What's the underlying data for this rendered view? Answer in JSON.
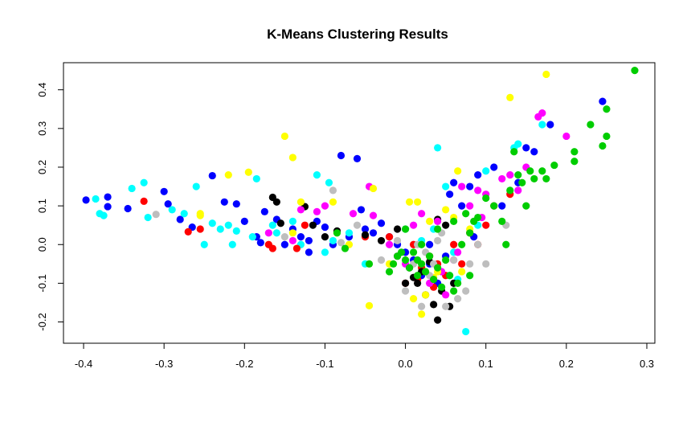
{
  "chart_data": {
    "type": "scatter",
    "title": "K-Means Clustering Results",
    "xlabel": "",
    "ylabel": "",
    "xlim": [
      -0.425,
      0.31
    ],
    "ylim": [
      -0.255,
      0.47
    ],
    "x_ticks": [
      -0.4,
      -0.3,
      -0.2,
      -0.1,
      0.0,
      0.1,
      0.2,
      0.3
    ],
    "x_tick_labels": [
      "-0.4",
      "-0.3",
      "-0.2",
      "-0.1",
      "0.0",
      "0.1",
      "0.2",
      "0.3"
    ],
    "y_ticks": [
      -0.2,
      -0.1,
      0.0,
      0.1,
      0.2,
      0.3,
      0.4
    ],
    "y_tick_labels": [
      "-0.2",
      "-0.1",
      "0.0",
      "0.1",
      "0.2",
      "0.3",
      "0.4"
    ],
    "grid": false,
    "legend": "none",
    "series": [
      {
        "color": "#0000FF",
        "points": [
          [
            -0.397,
            0.115
          ],
          [
            -0.37,
            0.123
          ],
          [
            -0.37,
            0.098
          ],
          [
            -0.345,
            0.093
          ],
          [
            -0.3,
            0.137
          ],
          [
            -0.295,
            0.105
          ],
          [
            -0.28,
            0.065
          ],
          [
            -0.265,
            0.045
          ],
          [
            -0.24,
            0.178
          ],
          [
            -0.225,
            0.11
          ],
          [
            -0.21,
            0.105
          ],
          [
            -0.2,
            0.06
          ],
          [
            -0.185,
            0.02
          ],
          [
            -0.18,
            0.005
          ],
          [
            -0.175,
            0.085
          ],
          [
            -0.16,
            0.065
          ],
          [
            -0.15,
            0.0
          ],
          [
            -0.14,
            0.04
          ],
          [
            -0.13,
            0.02
          ],
          [
            -0.12,
            0.01
          ],
          [
            -0.11,
            0.06
          ],
          [
            -0.1,
            0.045
          ],
          [
            -0.09,
            0.0
          ],
          [
            -0.08,
            0.23
          ],
          [
            -0.07,
            0.02
          ],
          [
            -0.06,
            0.222
          ],
          [
            -0.055,
            0.09
          ],
          [
            -0.05,
            0.04
          ],
          [
            -0.04,
            0.03
          ],
          [
            -0.03,
            0.055
          ],
          [
            -0.02,
            0.02
          ],
          [
            -0.01,
            0.0
          ],
          [
            0.0,
            -0.02
          ],
          [
            0.01,
            -0.04
          ],
          [
            0.02,
            -0.08
          ],
          [
            0.03,
            -0.05
          ],
          [
            0.04,
            -0.1
          ],
          [
            0.05,
            -0.03
          ],
          [
            0.055,
            0.13
          ],
          [
            0.06,
            0.16
          ],
          [
            0.08,
            0.15
          ],
          [
            0.09,
            0.18
          ],
          [
            0.11,
            0.2
          ],
          [
            0.12,
            0.1
          ],
          [
            0.14,
            0.16
          ],
          [
            0.15,
            0.25
          ],
          [
            0.16,
            0.24
          ],
          [
            0.18,
            0.31
          ],
          [
            0.245,
            0.37
          ],
          [
            0.07,
            0.1
          ],
          [
            0.085,
            0.02
          ],
          [
            0.03,
            0.0
          ],
          [
            -0.12,
            -0.02
          ]
        ]
      },
      {
        "color": "#00FFFF",
        "points": [
          [
            -0.385,
            0.118
          ],
          [
            -0.38,
            0.08
          ],
          [
            -0.375,
            0.075
          ],
          [
            -0.34,
            0.145
          ],
          [
            -0.325,
            0.16
          ],
          [
            -0.32,
            0.07
          ],
          [
            -0.29,
            0.09
          ],
          [
            -0.275,
            0.08
          ],
          [
            -0.26,
            0.15
          ],
          [
            -0.25,
            0.0
          ],
          [
            -0.24,
            0.055
          ],
          [
            -0.23,
            0.04
          ],
          [
            -0.22,
            0.05
          ],
          [
            -0.215,
            0.0
          ],
          [
            -0.21,
            0.035
          ],
          [
            -0.19,
            0.02
          ],
          [
            -0.185,
            0.17
          ],
          [
            -0.165,
            0.05
          ],
          [
            -0.16,
            0.03
          ],
          [
            -0.14,
            0.06
          ],
          [
            -0.11,
            0.18
          ],
          [
            -0.1,
            -0.02
          ],
          [
            -0.09,
            0.01
          ],
          [
            -0.07,
            0.03
          ],
          [
            -0.05,
            -0.05
          ],
          [
            0.0,
            0.04
          ],
          [
            0.02,
            0.01
          ],
          [
            0.035,
            0.04
          ],
          [
            0.04,
            0.25
          ],
          [
            0.05,
            0.15
          ],
          [
            0.06,
            -0.02
          ],
          [
            0.065,
            -0.09
          ],
          [
            0.075,
            -0.225
          ],
          [
            0.09,
            0.05
          ],
          [
            0.1,
            0.19
          ],
          [
            0.135,
            0.25
          ],
          [
            0.14,
            0.26
          ],
          [
            0.17,
            0.31
          ],
          [
            0.055,
            -0.08
          ],
          [
            -0.095,
            0.16
          ],
          [
            -0.13,
            0.0
          ]
        ]
      },
      {
        "color": "#FF0000",
        "points": [
          [
            -0.325,
            0.112
          ],
          [
            -0.27,
            0.033
          ],
          [
            -0.255,
            0.04
          ],
          [
            -0.17,
            0.0
          ],
          [
            -0.165,
            -0.01
          ],
          [
            -0.135,
            -0.01
          ],
          [
            -0.125,
            0.05
          ],
          [
            -0.05,
            0.02
          ],
          [
            -0.02,
            0.02
          ],
          [
            0.0,
            -0.1
          ],
          [
            0.01,
            0.0
          ],
          [
            0.02,
            -0.06
          ],
          [
            0.03,
            -0.03
          ],
          [
            0.04,
            -0.05
          ],
          [
            0.05,
            -0.08
          ],
          [
            0.06,
            0.0
          ],
          [
            0.07,
            -0.05
          ],
          [
            0.08,
            0.03
          ],
          [
            0.09,
            0.0
          ],
          [
            0.1,
            0.05
          ],
          [
            0.11,
            0.1
          ],
          [
            0.13,
            0.13
          ],
          [
            0.035,
            -0.11
          ],
          [
            0.015,
            -0.09
          ]
        ]
      },
      {
        "color": "#000000",
        "points": [
          [
            -0.165,
            0.122
          ],
          [
            -0.16,
            0.11
          ],
          [
            -0.155,
            0.055
          ],
          [
            -0.125,
            0.098
          ],
          [
            -0.115,
            0.05
          ],
          [
            -0.1,
            0.02
          ],
          [
            -0.085,
            0.035
          ],
          [
            -0.05,
            0.025
          ],
          [
            -0.03,
            0.01
          ],
          [
            -0.01,
            0.04
          ],
          [
            0.0,
            -0.1
          ],
          [
            0.01,
            -0.085
          ],
          [
            0.015,
            -0.1
          ],
          [
            0.025,
            -0.13
          ],
          [
            0.035,
            -0.155
          ],
          [
            0.04,
            -0.195
          ],
          [
            0.045,
            -0.12
          ],
          [
            0.05,
            0.05
          ],
          [
            0.055,
            -0.16
          ],
          [
            0.06,
            -0.1
          ],
          [
            0.04,
            0.065
          ],
          [
            0.02,
            -0.07
          ],
          [
            0.03,
            -0.045
          ],
          [
            0.005,
            -0.06
          ]
        ]
      },
      {
        "color": "#FF00FF",
        "points": [
          [
            -0.13,
            0.09
          ],
          [
            -0.11,
            0.085
          ],
          [
            -0.1,
            0.1
          ],
          [
            -0.065,
            0.08
          ],
          [
            -0.045,
            0.15
          ],
          [
            -0.04,
            0.075
          ],
          [
            -0.02,
            0.0
          ],
          [
            -0.01,
            -0.03
          ],
          [
            0.0,
            -0.05
          ],
          [
            0.01,
            0.05
          ],
          [
            0.02,
            0.08
          ],
          [
            0.04,
            0.06
          ],
          [
            0.05,
            -0.13
          ],
          [
            0.06,
            -0.04
          ],
          [
            0.07,
            0.15
          ],
          [
            0.08,
            0.1
          ],
          [
            0.09,
            0.14
          ],
          [
            0.095,
            0.07
          ],
          [
            0.1,
            0.13
          ],
          [
            0.12,
            0.17
          ],
          [
            0.13,
            0.18
          ],
          [
            0.14,
            0.14
          ],
          [
            0.15,
            0.2
          ],
          [
            0.165,
            0.33
          ],
          [
            0.17,
            0.34
          ],
          [
            0.2,
            0.28
          ],
          [
            -0.17,
            0.03
          ],
          [
            -0.14,
            0.01
          ],
          [
            0.03,
            -0.1
          ],
          [
            0.045,
            -0.07
          ],
          [
            0.065,
            -0.02
          ]
        ]
      },
      {
        "color": "#FFFF00",
        "points": [
          [
            -0.255,
            0.08
          ],
          [
            -0.255,
            0.075
          ],
          [
            -0.22,
            0.18
          ],
          [
            -0.195,
            0.187
          ],
          [
            -0.15,
            0.28
          ],
          [
            -0.14,
            0.225
          ],
          [
            -0.14,
            0.03
          ],
          [
            -0.13,
            0.11
          ],
          [
            -0.09,
            0.11
          ],
          [
            -0.07,
            0.0
          ],
          [
            -0.045,
            -0.158
          ],
          [
            -0.04,
            0.145
          ],
          [
            0.005,
            0.11
          ],
          [
            0.015,
            0.11
          ],
          [
            0.02,
            -0.18
          ],
          [
            0.025,
            -0.13
          ],
          [
            0.03,
            0.06
          ],
          [
            0.04,
            -0.07
          ],
          [
            0.05,
            0.09
          ],
          [
            0.06,
            0.07
          ],
          [
            0.065,
            0.19
          ],
          [
            0.07,
            -0.07
          ],
          [
            0.08,
            0.04
          ],
          [
            0.13,
            0.38
          ],
          [
            0.175,
            0.44
          ],
          [
            -0.02,
            -0.05
          ],
          [
            0.01,
            -0.14
          ],
          [
            0.035,
            -0.085
          ]
        ]
      },
      {
        "color": "#BEBEBE",
        "points": [
          [
            -0.31,
            0.078
          ],
          [
            -0.09,
            0.14
          ],
          [
            -0.08,
            0.005
          ],
          [
            -0.06,
            0.05
          ],
          [
            -0.03,
            -0.04
          ],
          [
            -0.01,
            0.01
          ],
          [
            0.0,
            -0.12
          ],
          [
            0.01,
            -0.05
          ],
          [
            0.02,
            -0.16
          ],
          [
            0.025,
            -0.02
          ],
          [
            0.03,
            -0.08
          ],
          [
            0.035,
            -0.05
          ],
          [
            0.04,
            0.01
          ],
          [
            0.05,
            -0.16
          ],
          [
            0.06,
            -0.04
          ],
          [
            0.065,
            -0.14
          ],
          [
            0.075,
            -0.12
          ],
          [
            0.08,
            -0.05
          ],
          [
            0.09,
            0.0
          ],
          [
            0.1,
            -0.05
          ],
          [
            -0.15,
            0.02
          ],
          [
            0.125,
            0.05
          ],
          [
            0.045,
            0.03
          ],
          [
            0.015,
            0.0
          ]
        ]
      },
      {
        "color": "#00CD00",
        "points": [
          [
            -0.085,
            0.03
          ],
          [
            -0.075,
            -0.01
          ],
          [
            -0.045,
            -0.05
          ],
          [
            -0.02,
            -0.07
          ],
          [
            -0.015,
            -0.05
          ],
          [
            -0.01,
            -0.03
          ],
          [
            0.0,
            -0.04
          ],
          [
            0.005,
            -0.06
          ],
          [
            0.01,
            -0.02
          ],
          [
            0.015,
            -0.08
          ],
          [
            0.02,
            -0.05
          ],
          [
            0.025,
            -0.07
          ],
          [
            0.03,
            -0.03
          ],
          [
            0.035,
            -0.09
          ],
          [
            0.04,
            -0.06
          ],
          [
            0.045,
            -0.11
          ],
          [
            0.05,
            -0.04
          ],
          [
            0.055,
            -0.08
          ],
          [
            0.06,
            -0.12
          ],
          [
            0.065,
            -0.1
          ],
          [
            0.07,
            0.0
          ],
          [
            0.075,
            0.08
          ],
          [
            0.08,
            0.03
          ],
          [
            0.085,
            0.06
          ],
          [
            0.09,
            0.07
          ],
          [
            0.1,
            0.12
          ],
          [
            0.11,
            0.1
          ],
          [
            0.12,
            0.06
          ],
          [
            0.125,
            0.0
          ],
          [
            0.13,
            0.14
          ],
          [
            0.135,
            0.24
          ],
          [
            0.14,
            0.18
          ],
          [
            0.145,
            0.16
          ],
          [
            0.15,
            0.1
          ],
          [
            0.155,
            0.19
          ],
          [
            0.16,
            0.17
          ],
          [
            0.17,
            0.19
          ],
          [
            0.175,
            0.17
          ],
          [
            0.185,
            0.205
          ],
          [
            0.21,
            0.24
          ],
          [
            0.21,
            0.215
          ],
          [
            0.23,
            0.31
          ],
          [
            0.245,
            0.255
          ],
          [
            0.25,
            0.28
          ],
          [
            0.25,
            0.35
          ],
          [
            0.285,
            0.45
          ],
          [
            0.0,
            0.04
          ],
          [
            0.02,
            0.0
          ],
          [
            0.04,
            0.04
          ],
          [
            0.06,
            0.06
          ],
          [
            0.08,
            -0.08
          ],
          [
            -0.005,
            -0.02
          ],
          [
            0.015,
            -0.04
          ]
        ]
      }
    ]
  }
}
